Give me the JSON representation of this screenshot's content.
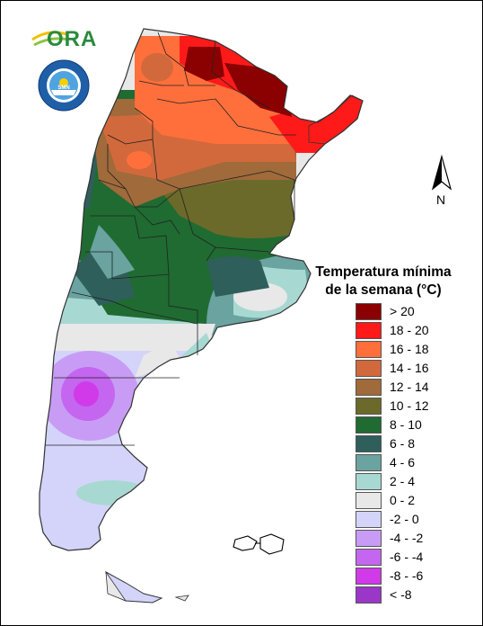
{
  "logo": {
    "text": "ORA",
    "icon": "ora-sun-logo"
  },
  "seal": {
    "icon": "servicio-meteorologico-nacional-seal",
    "text": "SERVICIO METEOROLOGICO NACIONAL ARGENTINA"
  },
  "north_arrow": {
    "label": "N",
    "icon": "north-arrow-icon"
  },
  "legend": {
    "title_line1": "Temperatura mínima",
    "title_line2": "de la semana (°C)",
    "items": [
      {
        "label": "> 20",
        "color": "#8b0000"
      },
      {
        "label": "18 - 20",
        "color": "#ff1a1a"
      },
      {
        "label": "16 - 18",
        "color": "#ff6f3c"
      },
      {
        "label": "14 - 16",
        "color": "#d2693c"
      },
      {
        "label": "12 - 14",
        "color": "#a06a3a"
      },
      {
        "label": "10 - 12",
        "color": "#6b6a2a"
      },
      {
        "label": "8 - 10",
        "color": "#1f6b32"
      },
      {
        "label": "6 - 8",
        "color": "#2f5f5a"
      },
      {
        "label": "4 - 6",
        "color": "#6aa3a0"
      },
      {
        "label": "2 - 4",
        "color": "#a8d8d2"
      },
      {
        "label": "0 - 2",
        "color": "#e8e8e8"
      },
      {
        "label": "-2 - 0",
        "color": "#d4d4fa"
      },
      {
        "label": "-4 - -2",
        "color": "#c89cf5"
      },
      {
        "label": "-6 - -4",
        "color": "#c466f0"
      },
      {
        "label": "-8 - -6",
        "color": "#d03ae8"
      },
      {
        "label": "< -8",
        "color": "#9a36c8"
      }
    ]
  },
  "map": {
    "description_colors": {
      "province_border": "#222222",
      "outline": "#333333"
    }
  }
}
